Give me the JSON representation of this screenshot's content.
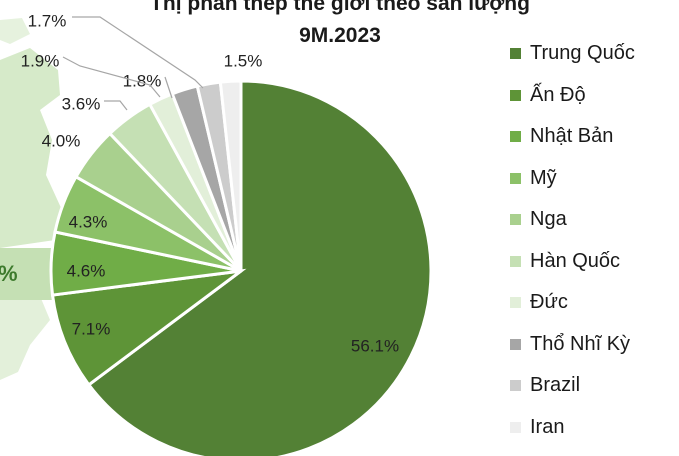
{
  "chart_data": {
    "type": "pie",
    "title_line1": "Thị phần thép thế giới theo sản lượng",
    "title_line2": "9M.2023",
    "categories": [
      "Trung Quốc",
      "Ấn Độ",
      "Nhật Bản",
      "Mỹ",
      "Nga",
      "Hàn Quốc",
      "Đức",
      "Thổ Nhĩ Kỳ",
      "Brazil",
      "Iran"
    ],
    "values": [
      56.1,
      7.1,
      4.6,
      4.3,
      4.0,
      3.6,
      1.8,
      1.9,
      1.7,
      1.5
    ],
    "value_labels": [
      "56.1%",
      "7.1%",
      "4.6%",
      "4.3%",
      "4.0%",
      "3.6%",
      "1.8%",
      "1.9%",
      "1.7%",
      "1.5%"
    ],
    "colors": [
      "#538135",
      "#5e9437",
      "#70ad47",
      "#8cc168",
      "#a9d08e",
      "#c5e0b4",
      "#e2efd9",
      "#a6a6a6",
      "#cccccc",
      "#eeeeee"
    ],
    "legend_position": "right",
    "start_angle_deg": 0,
    "direction": "clockwise"
  },
  "side_badge": "%"
}
